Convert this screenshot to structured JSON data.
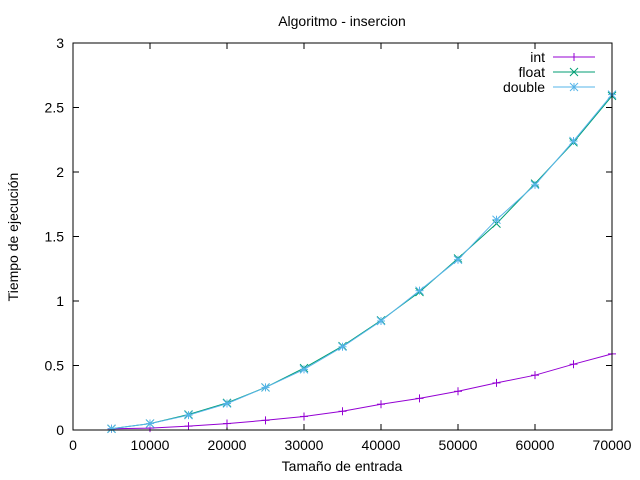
{
  "chart_data": {
    "type": "line",
    "title": "Algoritmo - insercion",
    "xlabel": "Tamaño de entrada",
    "ylabel": "Tiempo de ejecución",
    "xlim": [
      0,
      70000
    ],
    "ylim": [
      0,
      3
    ],
    "xticks": [
      0,
      10000,
      20000,
      30000,
      40000,
      50000,
      60000,
      70000
    ],
    "xtick_labels": [
      "0",
      "10000",
      "20000",
      "30000",
      "40000",
      "50000",
      "60000",
      "70000"
    ],
    "yticks": [
      0,
      0.5,
      1,
      1.5,
      2,
      2.5,
      3
    ],
    "ytick_labels": [
      "0",
      "0.5",
      "1",
      "1.5",
      "2",
      "2.5",
      "3"
    ],
    "grid": false,
    "legend_position": "top-right",
    "x": [
      5000,
      10000,
      15000,
      20000,
      25000,
      30000,
      35000,
      40000,
      45000,
      50000,
      55000,
      60000,
      65000,
      70000
    ],
    "series": [
      {
        "name": "int",
        "color": "#9400d3",
        "marker": "plus",
        "values": [
          0.01,
          0.015,
          0.03,
          0.05,
          0.075,
          0.105,
          0.145,
          0.2,
          0.245,
          0.3,
          0.365,
          0.425,
          0.51,
          0.59
        ]
      },
      {
        "name": "float",
        "color": "#009e73",
        "marker": "cross",
        "values": [
          0.01,
          0.05,
          0.12,
          0.21,
          0.33,
          0.48,
          0.65,
          0.85,
          1.07,
          1.33,
          1.6,
          1.91,
          2.23,
          2.59
        ]
      },
      {
        "name": "double",
        "color": "#56b4e9",
        "marker": "star",
        "values": [
          0.01,
          0.05,
          0.115,
          0.205,
          0.33,
          0.47,
          0.645,
          0.845,
          1.08,
          1.32,
          1.63,
          1.9,
          2.24,
          2.6
        ]
      }
    ]
  }
}
